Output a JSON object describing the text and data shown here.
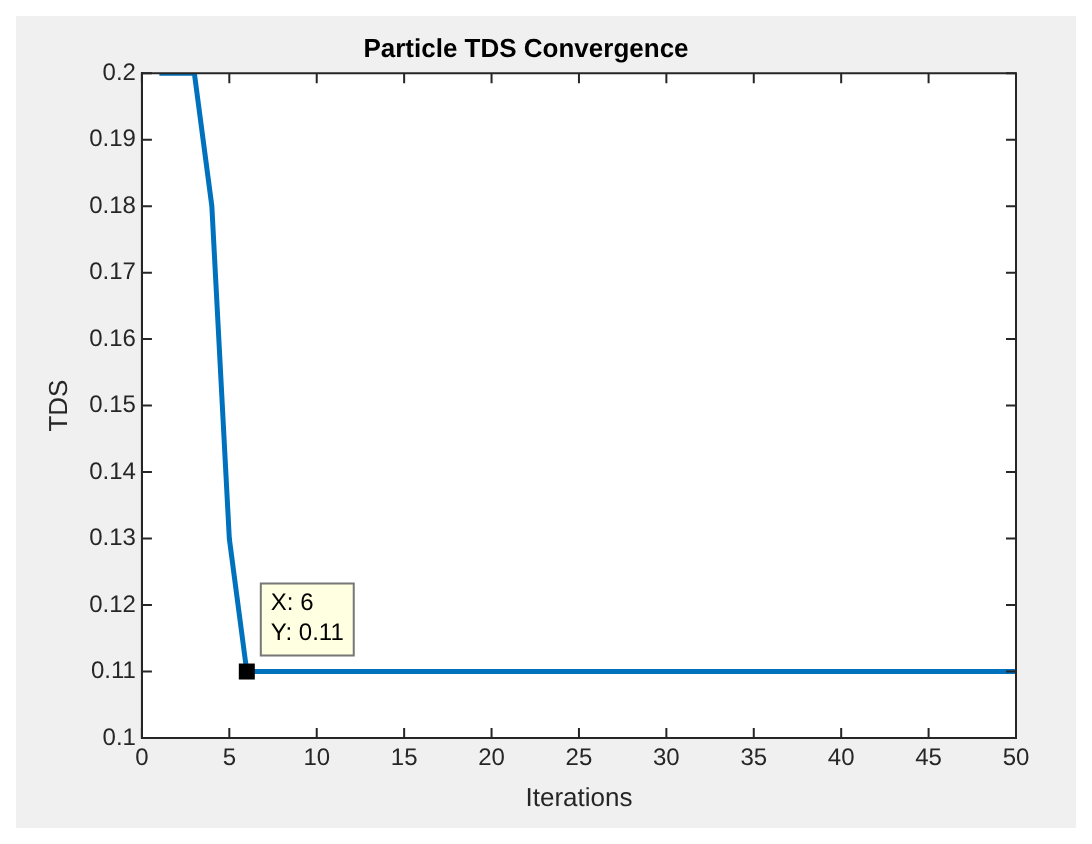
{
  "chart_data": {
    "type": "line",
    "title": "Particle TDS Convergence",
    "xlabel": "Iterations",
    "ylabel": "TDS",
    "x": [
      1,
      2,
      3,
      4,
      5,
      6,
      50
    ],
    "series": [
      {
        "color": "#0072bd",
        "values": [
          0.2,
          0.2,
          0.2,
          0.18,
          0.13,
          0.11,
          0.11
        ]
      }
    ],
    "xlim": [
      0,
      50
    ],
    "xticks": [
      0,
      5,
      10,
      15,
      20,
      25,
      30,
      35,
      40,
      45,
      50
    ],
    "ylim": [
      0.1,
      0.2
    ],
    "yticks": [
      0.1,
      0.11,
      0.12,
      0.13,
      0.14,
      0.15,
      0.16,
      0.17,
      0.18,
      0.19,
      0.2
    ],
    "grid": false,
    "legend": false,
    "marker": "none",
    "line_style": "solid",
    "annotations": [
      {
        "text": "X: 6\nY: 0.11",
        "x": 6,
        "y": 0.11
      }
    ]
  }
}
